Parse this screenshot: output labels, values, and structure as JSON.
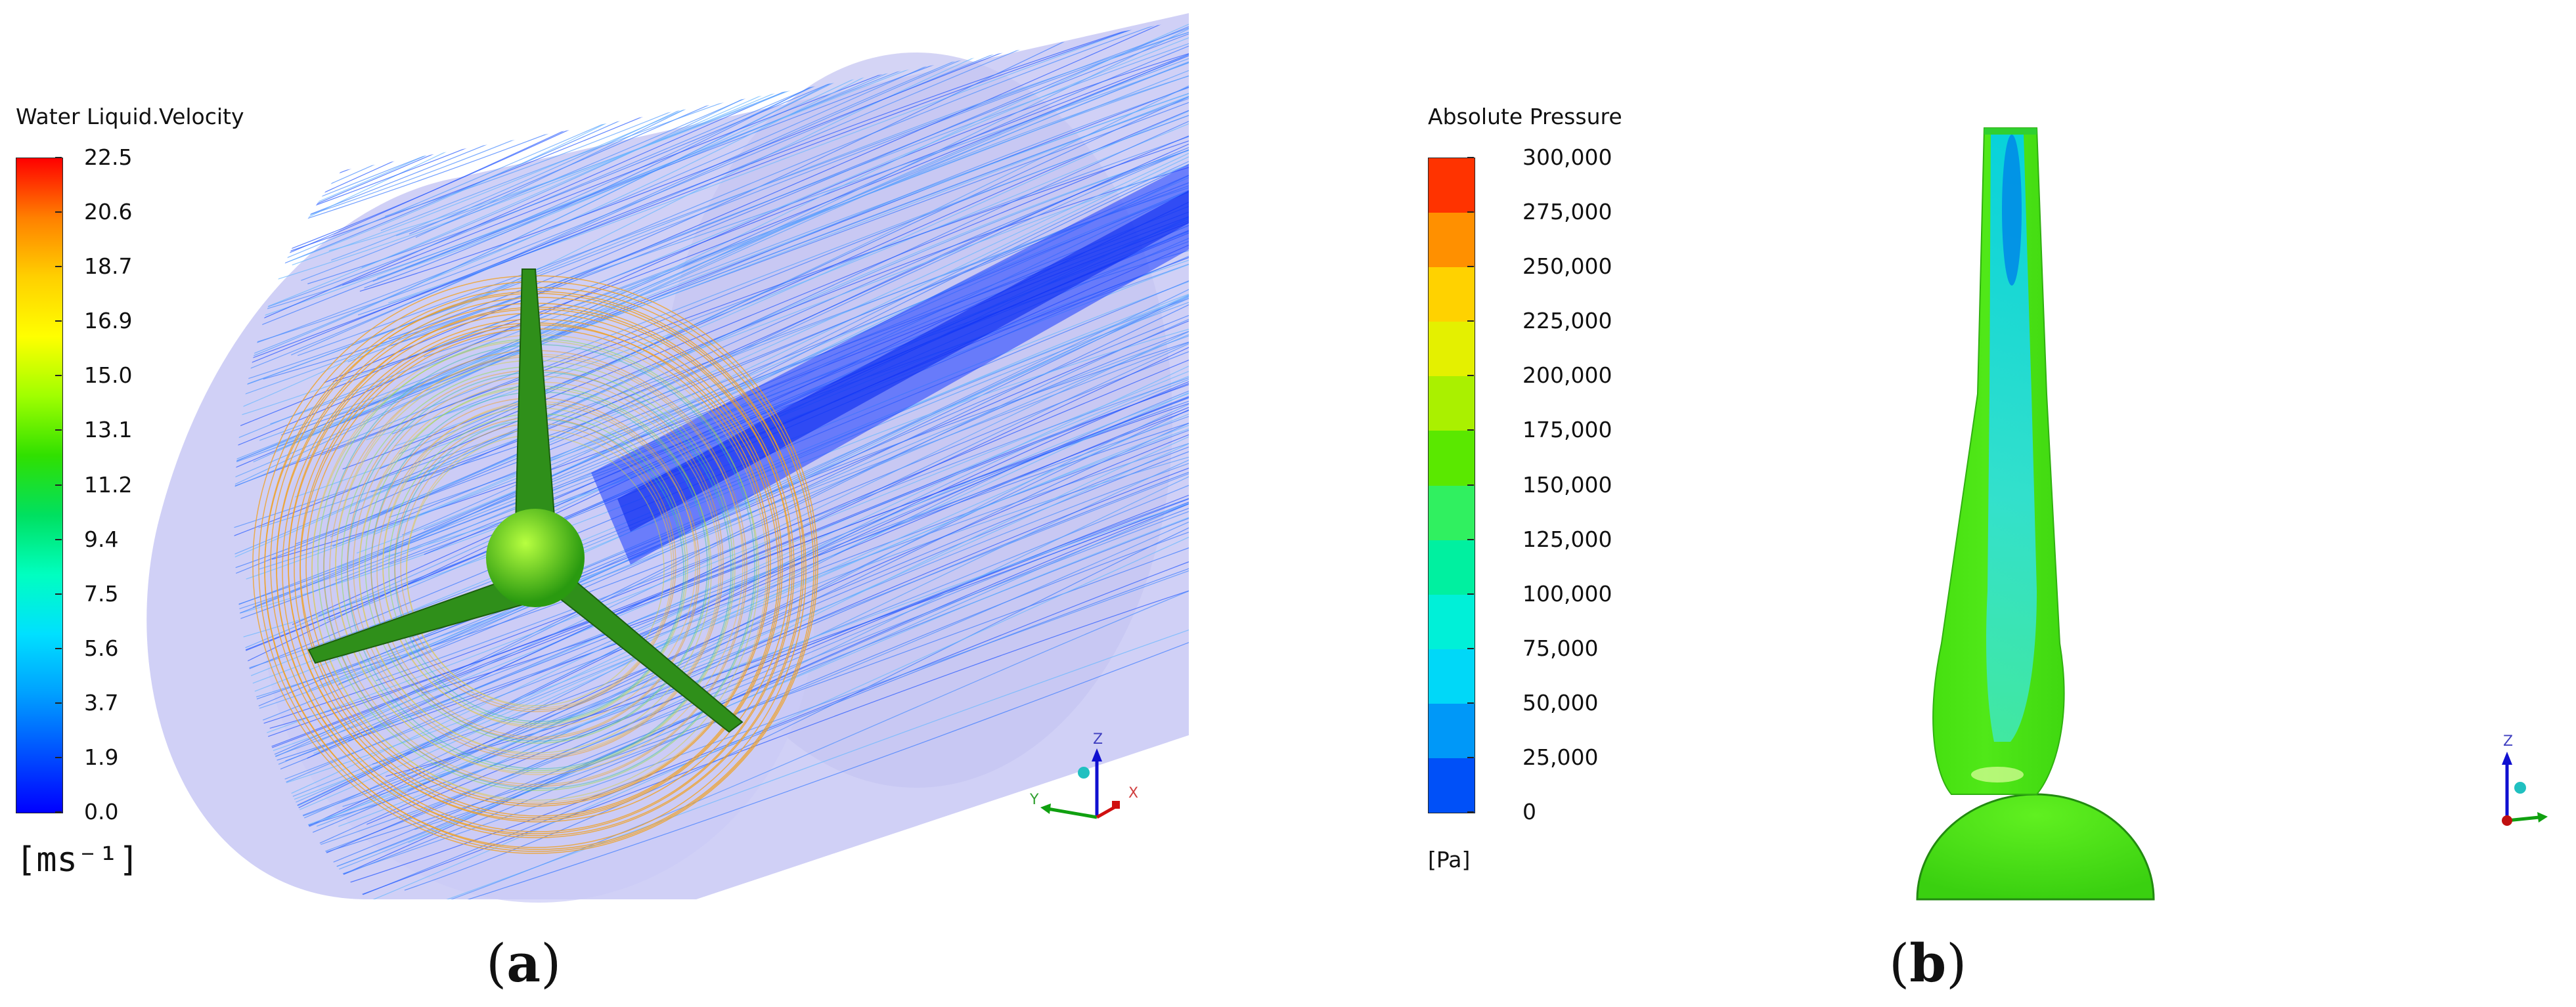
{
  "panel_a": {
    "legend_title": "Water Liquid.Velocity",
    "ticks": [
      "22.5",
      "20.6",
      "18.7",
      "16.9",
      "15.0",
      "13.1",
      "11.2",
      "9.4",
      "7.5",
      "5.6",
      "3.7",
      "1.9",
      "0.0"
    ],
    "unit": "[ms⁻¹]",
    "gradient_colors": [
      "#ff0000",
      "#ff8000",
      "#ffd000",
      "#ffff00",
      "#a0ff00",
      "#30e000",
      "#00e060",
      "#00ffc0",
      "#00e0ff",
      "#00a0ff",
      "#0050ff",
      "#0000ff"
    ],
    "axes": {
      "z": "Z",
      "y": "Y",
      "x": "X"
    },
    "caption_letter": "a"
  },
  "panel_b": {
    "legend_title": "Absolute Pressure",
    "ticks": [
      "300,000",
      "275,000",
      "250,000",
      "225,000",
      "200,000",
      "175,000",
      "150,000",
      "125,000",
      "100,000",
      "75,000",
      "50,000",
      "25,000",
      "0"
    ],
    "unit": "[Pa]",
    "band_colors": [
      "#ff3300",
      "#ff9000",
      "#ffd200",
      "#e4f000",
      "#aaf000",
      "#5ae800",
      "#30f060",
      "#00f0a0",
      "#00f0d8",
      "#00d8f8",
      "#0098f8",
      "#0050f8"
    ],
    "axes": {
      "z": "Z"
    },
    "caption_letter": "b"
  }
}
